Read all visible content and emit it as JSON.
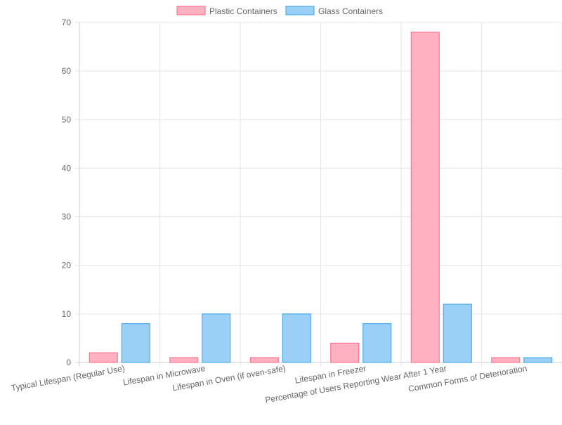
{
  "chart_data": {
    "type": "bar",
    "title": "",
    "xlabel": "",
    "ylabel": "",
    "categories": [
      "Typical Lifespan (Regular Use)",
      "Lifespan in Microwave",
      "Lifespan in Oven (if oven-safe)",
      "Lifespan in Freezer",
      "Percentage of Users Reporting Wear After 1 Year",
      "Common Forms of Deterioration"
    ],
    "series": [
      {
        "name": "Plastic Containers",
        "values": [
          2,
          1,
          1,
          4,
          68,
          1
        ],
        "fill": "#ffb1c1",
        "stroke": "#ff6384"
      },
      {
        "name": "Glass Containers",
        "values": [
          8,
          10,
          10,
          8,
          12,
          1
        ],
        "fill": "#9ad0f5",
        "stroke": "#36a2eb"
      }
    ],
    "ylim": [
      0,
      70
    ],
    "yticks": [
      0,
      10,
      20,
      30,
      40,
      50,
      60,
      70
    ],
    "grid": true,
    "legend_position": "top"
  }
}
